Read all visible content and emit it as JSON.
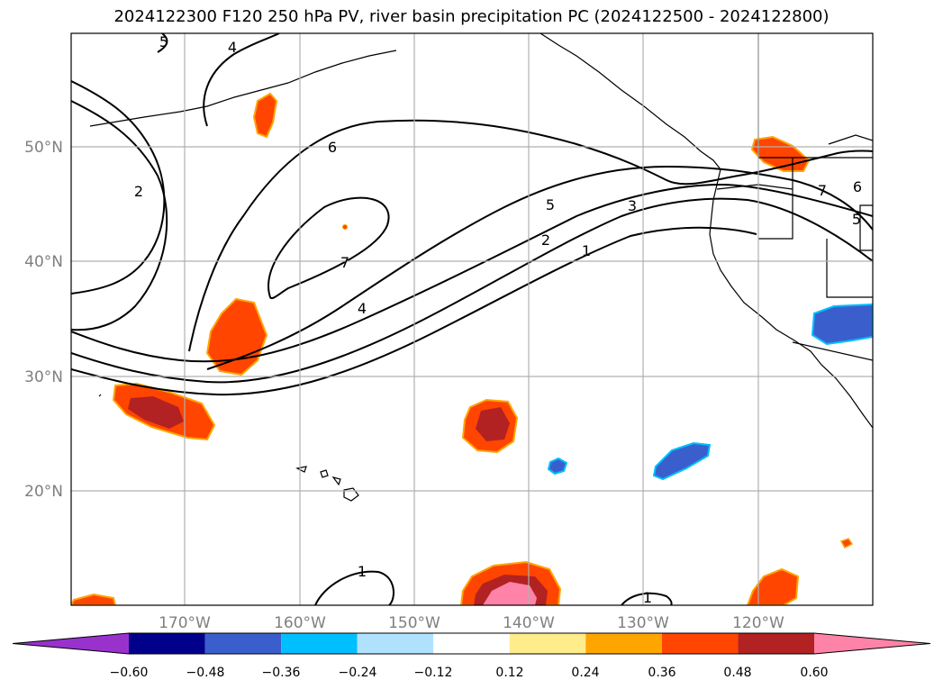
{
  "title": "2024122300 F120 250 hPa PV, river basin precipitation PC (2024122500 - 2024122800)",
  "map": {
    "lat_labels": [
      "50°N",
      "40°N",
      "30°N",
      "20°N"
    ],
    "lon_labels": [
      "170°W",
      "160°W",
      "150°W",
      "140°W",
      "130°W",
      "120°W"
    ],
    "contour_labels": [
      "5",
      "4",
      "6",
      "2",
      "7",
      "4",
      "5",
      "3",
      "2",
      "1",
      "1",
      "1",
      "7",
      "6",
      "5"
    ]
  },
  "colorbar": {
    "ticks": [
      "−0.60",
      "−0.48",
      "−0.36",
      "−0.24",
      "−0.12",
      "0.12",
      "0.24",
      "0.36",
      "0.48",
      "0.60"
    ],
    "colors": [
      "#9932cc",
      "#00008b",
      "#3a5fcd",
      "#00bfff",
      "#b0e2ff",
      "#ffffff",
      "#ffec8b",
      "#ffa500",
      "#ff4500",
      "#b22222",
      "#ff83a8"
    ]
  }
}
